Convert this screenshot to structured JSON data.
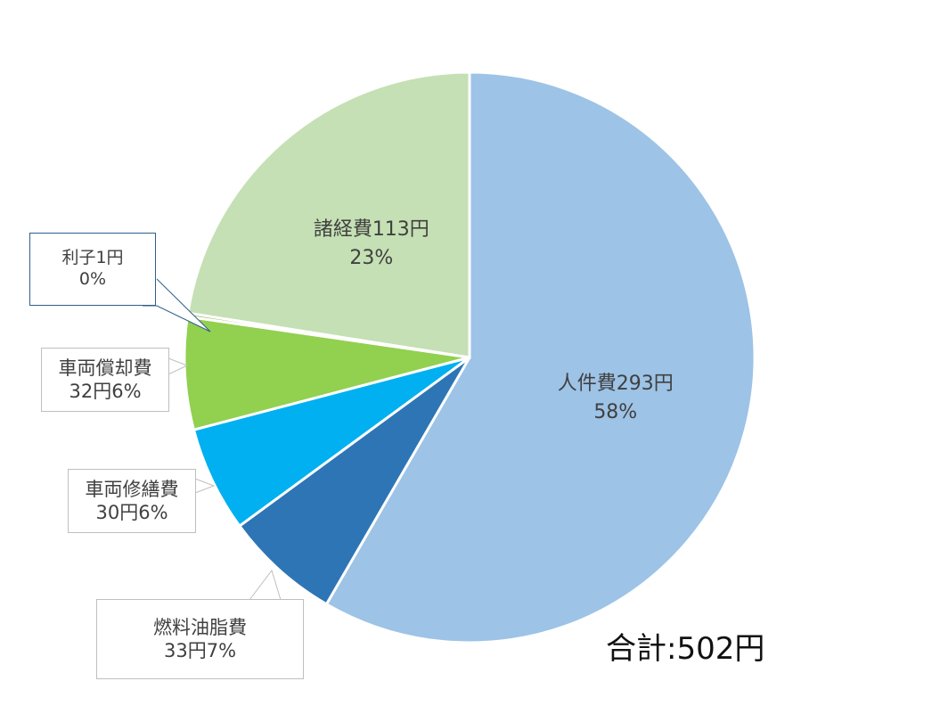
{
  "chart_data": {
    "type": "pie",
    "start_angle_deg": 0,
    "direction": "clockwise",
    "slices": [
      {
        "name": "人件費",
        "amount": "293円",
        "percent": "58%",
        "value": 293,
        "color": "#9dc3e6",
        "label_style": "inside"
      },
      {
        "name": "燃料油脂費",
        "amount": "33円",
        "percent": "7%",
        "value": 33,
        "color": "#2e75b6",
        "label_style": "callout"
      },
      {
        "name": "車両修繕費",
        "amount": "30円",
        "percent": "6%",
        "value": 30,
        "color": "#00b0f0",
        "label_style": "callout"
      },
      {
        "name": "車両償却費",
        "amount": "32円",
        "percent": "6%",
        "value": 32,
        "color": "#92d050",
        "label_style": "callout"
      },
      {
        "name": "利子",
        "amount": "1円",
        "percent": "0%",
        "value": 1,
        "color": "#9bbb59",
        "label_style": "callout"
      },
      {
        "name": "諸経費",
        "amount": "113円",
        "percent": "23%",
        "value": 113,
        "color": "#c5e0b4",
        "label_style": "inside"
      }
    ]
  },
  "total_label": "合計:502円"
}
